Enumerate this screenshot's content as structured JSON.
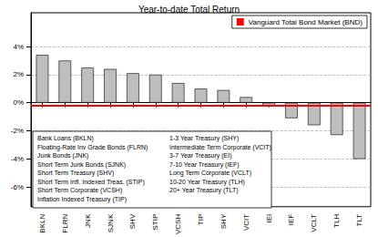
{
  "chart_data": {
    "type": "bar",
    "title": "Year-to-date Total Return",
    "categories": [
      "BKLN",
      "FLRN",
      "JNK",
      "SJNK",
      "SHV",
      "STIP",
      "VCSH",
      "TIP",
      "SHY",
      "VCIT",
      "IEI",
      "IEF",
      "VCLT",
      "TLH",
      "TLT"
    ],
    "values": [
      3.4,
      3.0,
      2.5,
      2.4,
      2.1,
      2.0,
      1.4,
      1.0,
      0.9,
      0.4,
      -0.2,
      -1.1,
      -1.6,
      -2.3,
      -4.0
    ],
    "color": "#bebebe",
    "ylim": [
      -7.4,
      6.4
    ],
    "yticks": [
      {
        "value": -6,
        "label": "-6%"
      },
      {
        "value": -4,
        "label": "-4%"
      },
      {
        "value": -2,
        "label": "-2%"
      },
      {
        "value": 0,
        "label": "0%"
      },
      {
        "value": 2,
        "label": "2%"
      },
      {
        "value": 4,
        "label": "4%"
      }
    ],
    "grid": true,
    "legend": "topright",
    "reference": {
      "name": "Vanguard Total Bond Market (BND)",
      "value": -0.2,
      "color": "#ff0000"
    },
    "annotations": [
      [
        "Bank Loans (BKLN)",
        "Floating-Rate Inv Grade Bonds (FLRN)",
        "Junk Bonds (JNK)",
        "Short Term Junk Bonds (SJNK)",
        "Short Term Treasury (SHV)",
        "Short Term Infl. Indexed Treas. (STIP)",
        "Short Term Corporate (VCSH)",
        "Inflation Indexed Treasury (TIP)"
      ],
      [
        "1-3 Year Treasury (SHY)",
        "Intermediate Term Corporate (VCIT)",
        "3-7 Year Treasury (EI)",
        "7-10 Year Treasury (IEF)",
        "Long Term Corporate (VCLT)",
        "10-20 Year Treasury (TLH)",
        "20+ Year Treasury (TLT)"
      ]
    ]
  }
}
